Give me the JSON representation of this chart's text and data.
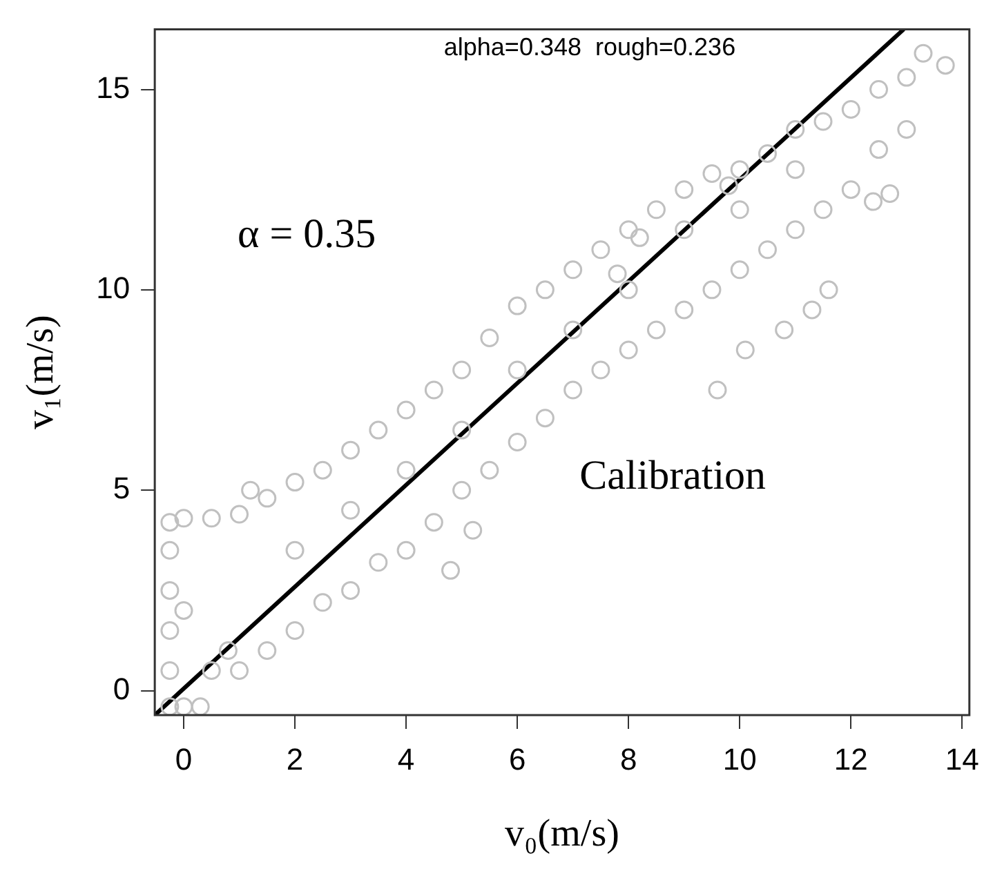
{
  "chart_data": {
    "type": "scatter",
    "xlabel": "v₀(m/s)",
    "ylabel": "v₁(m/s)",
    "xlim": [
      -0.52,
      14.13
    ],
    "ylim": [
      -0.61,
      16.5
    ],
    "xticks": [
      0,
      2,
      4,
      6,
      8,
      10,
      12,
      14
    ],
    "yticks": [
      0,
      5,
      10,
      15
    ],
    "grid": false,
    "legend": false,
    "marker": "circle",
    "annotations": [
      "alpha=0.348  rough=0.236",
      "α = 0.35",
      "Calibration"
    ],
    "series": [
      {
        "color": "#c0c0c0",
        "x": [
          -0.25,
          -0.25,
          -0.25,
          -0.25,
          -0.25,
          -0.25,
          0,
          0,
          0,
          0.3,
          0.5,
          0.5,
          0.8,
          1,
          1,
          1.2,
          1.5,
          1.5,
          2,
          2,
          2,
          2.5,
          2.5,
          3,
          3,
          3,
          3.5,
          3.5,
          4,
          4,
          4,
          4.5,
          4.5,
          5,
          5,
          5,
          5.5,
          5.5,
          6,
          6,
          6,
          6.5,
          6.5,
          7,
          7,
          7,
          7.5,
          7.5,
          8,
          8,
          8,
          8.5,
          8.5,
          9,
          9,
          9,
          9.5,
          9.5,
          10,
          10,
          10,
          10.5,
          10.5,
          11,
          11,
          11,
          11.5,
          11.5,
          12,
          12,
          12.5,
          12.5,
          13,
          13,
          13.3,
          13.7,
          9.6,
          10.1,
          10.8,
          11.3,
          11.6,
          12.4,
          12.7,
          4.8,
          5.2,
          7.8,
          8.2,
          9.8
        ],
        "values": [
          -0.4,
          0.5,
          1.5,
          2.5,
          3.5,
          4.2,
          -0.4,
          2,
          4.3,
          -0.4,
          0.5,
          4.3,
          1,
          0.5,
          4.4,
          5,
          1,
          4.8,
          1.5,
          3.5,
          5.2,
          2.2,
          5.5,
          2.5,
          4.5,
          6,
          3.2,
          6.5,
          3.5,
          5.5,
          7,
          4.2,
          7.5,
          5,
          6.5,
          8,
          5.5,
          8.8,
          6.2,
          8,
          9.6,
          6.8,
          10,
          7.5,
          9,
          10.5,
          8,
          11,
          8.5,
          10,
          11.5,
          9,
          12,
          9.5,
          11.5,
          12.5,
          10,
          12.9,
          10.5,
          12,
          13,
          11,
          13.4,
          11.5,
          13,
          14,
          12,
          14.2,
          12.5,
          14.5,
          13.5,
          15,
          14,
          15.3,
          15.9,
          15.6,
          7.5,
          8.5,
          9,
          9.5,
          10,
          12.2,
          12.4,
          3,
          4,
          10.4,
          11.3,
          12.6
        ]
      },
      {
        "type": "line",
        "color": "#000000",
        "marker": "none",
        "x": [
          -0.52,
          12.95
        ],
        "values": [
          -0.61,
          16.5
        ]
      }
    ]
  }
}
